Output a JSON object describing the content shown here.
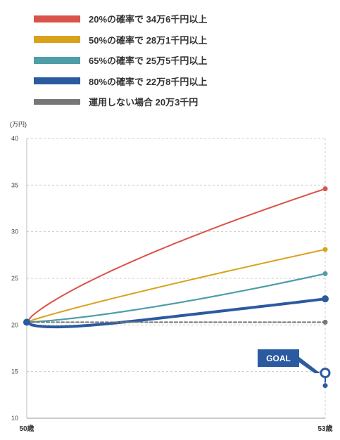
{
  "legend": [
    {
      "label": "20%の確率で  34万6千円以上",
      "color": "#d9534a"
    },
    {
      "label": "50%の確率で  28万1千円以上",
      "color": "#d9a21b"
    },
    {
      "label": "65%の確率で  25万5千円以上",
      "color": "#4e9da8"
    },
    {
      "label": "80%の確率で  22万8千円以上",
      "color": "#2b5aa0"
    },
    {
      "label": "運用しない場合 20万3千円",
      "color": "#777777"
    }
  ],
  "y_unit_label": "(万円)",
  "goal_label": "GOAL",
  "chart_data": {
    "type": "line",
    "x": [
      50,
      53
    ],
    "x_tick_labels": [
      "50歳",
      "53歳"
    ],
    "ylim": [
      10,
      40
    ],
    "y_ticks": [
      10,
      15,
      20,
      25,
      30,
      35,
      40
    ],
    "grid": true,
    "ylabel": "(万円)",
    "series": [
      {
        "name": "20%の確率で  34万6千円以上",
        "color": "#d9534a",
        "start": 20.3,
        "end": 34.6,
        "shape": "concave"
      },
      {
        "name": "50%の確率で  28万1千円以上",
        "color": "#d9a21b",
        "start": 20.3,
        "end": 28.1,
        "shape": "slight"
      },
      {
        "name": "65%の確率で  25万5千円以上",
        "color": "#4e9da8",
        "start": 20.3,
        "end": 25.5,
        "shape": "convex"
      },
      {
        "name": "80%の確率で  22万8千円以上",
        "color": "#2b5aa0",
        "start": 20.3,
        "end": 22.8,
        "shape": "dip",
        "min": 19.7
      },
      {
        "name": "運用しない場合 20万3千円",
        "color": "#777777",
        "start": 20.3,
        "end": 20.3,
        "shape": "flat",
        "dashed": true
      }
    ],
    "goal_marker": {
      "x": 53,
      "y": 13.5
    }
  }
}
